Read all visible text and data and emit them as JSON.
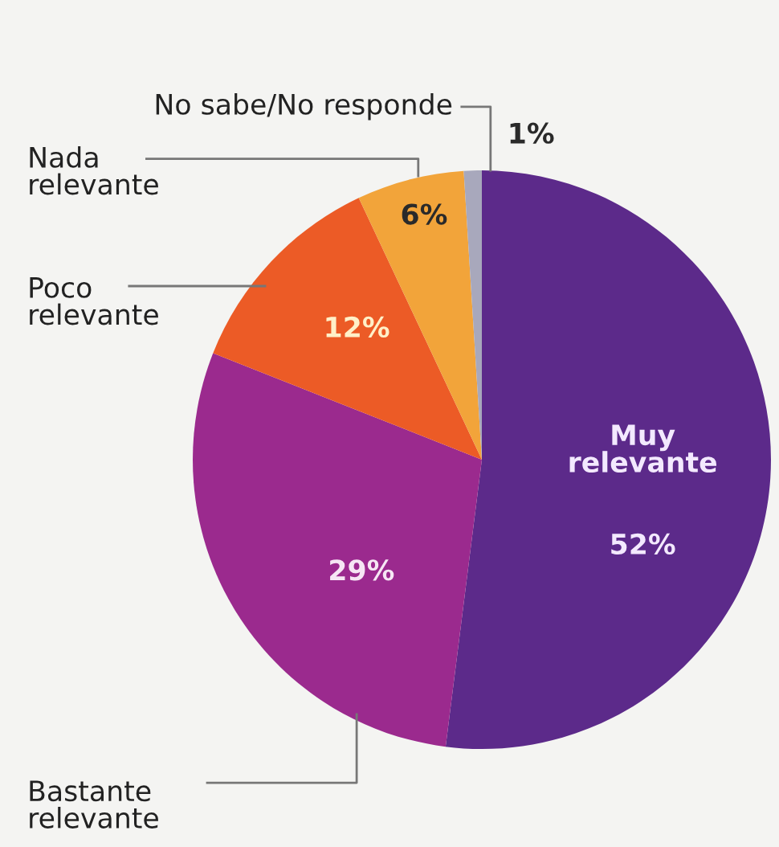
{
  "chart_data": {
    "type": "pie",
    "categories": [
      "Muy\nrelevante",
      "Bastante\nrelevante",
      "Poco\nrelevante",
      "Nada\nrelevante",
      "No sabe/No responde"
    ],
    "values": [
      52,
      29,
      12,
      6,
      1
    ],
    "colors": [
      "#5c2a8a",
      "#9b2a8e",
      "#ec5b26",
      "#f2a43a",
      "#a8a8bc"
    ],
    "value_labels": [
      "52%",
      "29%",
      "12%",
      "6%",
      "1%"
    ]
  }
}
